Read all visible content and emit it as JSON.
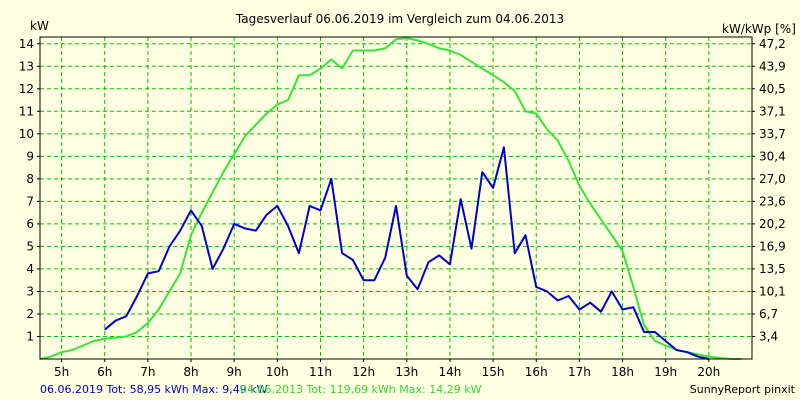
{
  "chart_data": {
    "type": "line",
    "title": "Tagesverlauf 06.06.2019 im Vergleich zum 04.06.2013",
    "ylabel_left": "kW",
    "ylabel_right": "kW/kWp [%]",
    "xlim": [
      4.5,
      21.0
    ],
    "ylim": [
      0,
      14.3
    ],
    "grid": true,
    "background": "#FFFFE1",
    "grid_color": "#00C000",
    "x_ticks": [
      5,
      6,
      7,
      8,
      9,
      10,
      11,
      12,
      13,
      14,
      15,
      16,
      17,
      18,
      19,
      20
    ],
    "x_tick_labels": [
      "5h",
      "6h",
      "7h",
      "8h",
      "9h",
      "10h",
      "11h",
      "12h",
      "13h",
      "14h",
      "15h",
      "16h",
      "17h",
      "18h",
      "19h",
      "20h"
    ],
    "y_ticks": [
      1,
      2,
      3,
      4,
      5,
      6,
      7,
      8,
      9,
      10,
      11,
      12,
      13,
      14
    ],
    "y_tick_labels": [
      "1",
      "2",
      "3",
      "4",
      "5",
      "6",
      "7",
      "8",
      "9",
      "10",
      "11",
      "12",
      "13",
      "14"
    ],
    "y_right_ticks": [
      3.4,
      6.7,
      10.1,
      13.5,
      16.9,
      20.2,
      23.6,
      27.0,
      30.4,
      33.7,
      37.1,
      40.5,
      43.9,
      47.2
    ],
    "y_right_tick_labels": [
      "3,4",
      "6,7",
      "10,1",
      "13,5",
      "16,9",
      "20,2",
      "23,6",
      "27,0",
      "30,4",
      "33,7",
      "37,1",
      "40,5",
      "43,9",
      "47,2"
    ],
    "series": [
      {
        "name": "06.06.2019",
        "color": "#0000CC",
        "x": [
          6.0,
          6.25,
          6.5,
          6.75,
          7.0,
          7.25,
          7.5,
          7.75,
          8.0,
          8.25,
          8.5,
          8.75,
          9.0,
          9.25,
          9.5,
          9.75,
          10.0,
          10.25,
          10.5,
          10.75,
          11.0,
          11.25,
          11.5,
          11.75,
          12.0,
          12.25,
          12.5,
          12.75,
          13.0,
          13.25,
          13.5,
          13.75,
          14.0,
          14.25,
          14.5,
          14.75,
          15.0,
          15.25,
          15.5,
          15.75,
          16.0,
          16.25,
          16.5,
          16.75,
          17.0,
          17.25,
          17.5,
          17.75,
          18.0,
          18.25,
          18.5,
          18.75,
          19.0,
          19.25,
          19.5,
          19.75,
          20.0
        ],
        "values": [
          1.3,
          1.7,
          1.9,
          2.8,
          3.8,
          3.9,
          5.0,
          5.7,
          6.6,
          5.9,
          4.0,
          4.9,
          6.0,
          5.8,
          5.7,
          6.4,
          6.8,
          5.9,
          4.7,
          6.8,
          6.6,
          8.0,
          4.7,
          4.4,
          3.5,
          3.5,
          4.5,
          6.8,
          3.7,
          3.1,
          4.3,
          4.6,
          4.2,
          7.1,
          4.9,
          8.3,
          7.6,
          9.4,
          4.7,
          5.5,
          3.2,
          3.0,
          2.6,
          2.8,
          2.2,
          2.5,
          2.1,
          3.0,
          2.2,
          2.3,
          1.2,
          1.2,
          0.8,
          0.4,
          0.3,
          0.1,
          0.0
        ]
      },
      {
        "name": "04.06.2013",
        "color": "#33E633",
        "x": [
          4.5,
          4.75,
          5.0,
          5.25,
          5.5,
          5.75,
          6.0,
          6.25,
          6.5,
          6.75,
          7.0,
          7.25,
          7.5,
          7.75,
          8.0,
          8.25,
          8.5,
          8.75,
          9.0,
          9.25,
          9.5,
          9.75,
          10.0,
          10.25,
          10.5,
          10.75,
          11.0,
          11.25,
          11.5,
          11.75,
          12.0,
          12.25,
          12.5,
          12.75,
          13.0,
          13.25,
          13.5,
          13.75,
          14.0,
          14.25,
          14.5,
          14.75,
          15.0,
          15.25,
          15.5,
          15.75,
          16.0,
          16.25,
          16.5,
          16.75,
          17.0,
          17.25,
          17.5,
          17.75,
          18.0,
          18.25,
          18.5,
          18.75,
          19.0,
          19.25,
          19.5,
          19.75,
          20.0,
          20.25,
          20.5,
          20.75
        ],
        "values": [
          0.0,
          0.1,
          0.3,
          0.4,
          0.6,
          0.8,
          0.9,
          0.95,
          1.0,
          1.2,
          1.6,
          2.2,
          3.0,
          3.8,
          5.5,
          6.5,
          7.4,
          8.3,
          9.1,
          9.9,
          10.4,
          10.9,
          11.3,
          11.5,
          12.6,
          12.6,
          12.9,
          13.3,
          12.9,
          13.7,
          13.7,
          13.7,
          13.8,
          14.2,
          14.25,
          14.15,
          14.0,
          13.8,
          13.7,
          13.5,
          13.2,
          12.9,
          12.6,
          12.3,
          11.9,
          11.0,
          10.9,
          10.2,
          9.7,
          8.8,
          7.7,
          6.9,
          6.2,
          5.5,
          4.8,
          3.2,
          1.5,
          0.8,
          0.6,
          0.4,
          0.3,
          0.2,
          0.1,
          0.05,
          0.0,
          0.0
        ]
      }
    ]
  },
  "footer": {
    "legend_2019": "06.06.2019 Tot: 58,95 kWh Max: 9,49 kW",
    "legend_2013": "04.06.2013 Tot: 119,69 kWh Max: 14,29 kW",
    "brand": "SunnyReport pinxit"
  }
}
